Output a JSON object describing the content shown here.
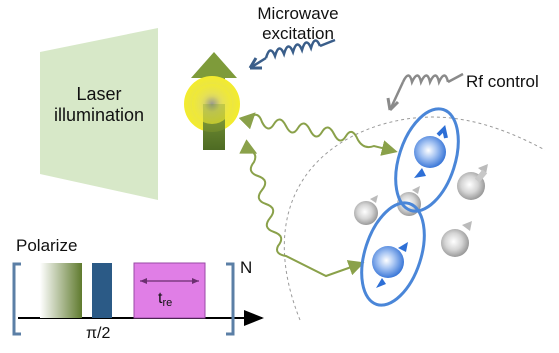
{
  "labels": {
    "microwave_line1": "Microwave",
    "microwave_line2": "excitation",
    "laser_line1": "Laser",
    "laser_line2": "illumination",
    "rf_control": "Rf control",
    "polarize": "Polarize",
    "repeat_n": "N",
    "pi_half": "π/2",
    "t_main": "t",
    "t_sub": "re"
  },
  "colors": {
    "laser_panel": "#d7e8c8",
    "nv_center": "#f0ea3a",
    "arrow_green": "#6d8a37",
    "wiggle_green": "#8aa14a",
    "microwave_blue": "#3a5e8a",
    "rf_gray": "#8a8a8a",
    "spin_blue": "#2d6fd6",
    "ellipse_blue": "#4a86d8",
    "pulse_dark": "#2b5a86",
    "pulse_magenta": "#e07ee6",
    "bracket": "#5b7fa6"
  },
  "icons": {
    "microwave": "coil-arrow-icon",
    "rf": "coil-arrow-icon",
    "electron_spin": "spin-up-arrow-icon"
  }
}
